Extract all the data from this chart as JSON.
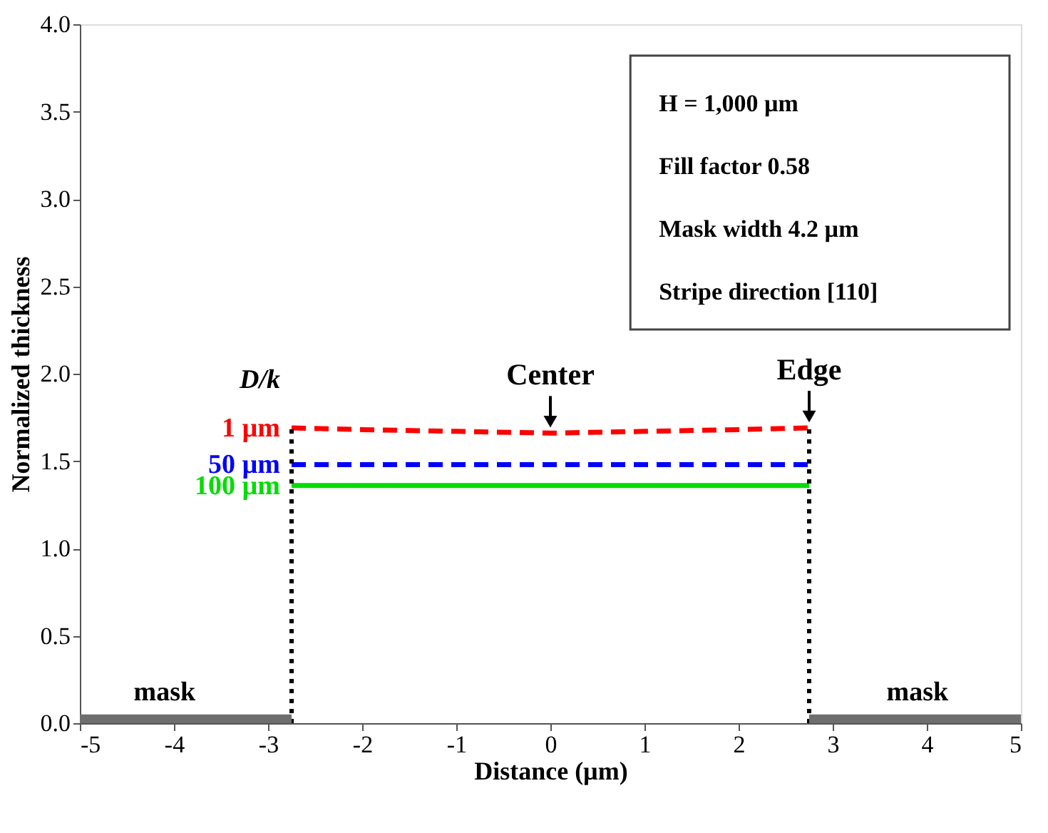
{
  "chart_data": {
    "type": "line",
    "xlabel": "Distance (µm)",
    "ylabel": "Normalized thickness",
    "legend_title": "D/k",
    "xlim": [
      -5,
      5
    ],
    "xticks": [
      -5,
      -4,
      -3,
      -2,
      -1,
      0,
      1,
      2,
      3,
      4,
      5
    ],
    "ylim": [
      0,
      4
    ],
    "yticks": [
      {
        "value": 0,
        "label": "0.0"
      },
      0.5,
      {
        "value": 1,
        "label": "1.0"
      },
      1.5,
      {
        "value": 2,
        "label": "2.0"
      },
      2.5,
      {
        "value": 3,
        "label": "3.0"
      },
      3.5,
      {
        "value": 4,
        "label": "4.0"
      }
    ],
    "series": [
      {
        "name": "1 µm",
        "color": "#ff0000",
        "line_style": "dashed",
        "x": [
          -2.75,
          -2,
          -1,
          0,
          1,
          2,
          2.75
        ],
        "values": [
          1.69,
          1.68,
          1.67,
          1.66,
          1.67,
          1.68,
          1.69
        ]
      },
      {
        "name": "50 µm",
        "color": "#0000ff",
        "line_style": "dashed",
        "x": [
          -2.75,
          2.75
        ],
        "values": [
          1.48,
          1.48
        ]
      },
      {
        "name": "100 µm",
        "color": "#00dd00",
        "line_style": "solid",
        "x": [
          -2.75,
          2.75
        ],
        "values": [
          1.36,
          1.36
        ]
      },
      {
        "color": "#000000",
        "line_style": "dotted",
        "x": [
          -2.75,
          -2.75
        ],
        "values": [
          0,
          1.69
        ]
      },
      {
        "color": "#000000",
        "line_style": "dotted",
        "x": [
          2.75,
          2.75
        ],
        "values": [
          0,
          1.69
        ]
      },
      {
        "type": "area",
        "color": "#6e6e6e",
        "x": [
          -5,
          -2.75
        ],
        "values": [
          0.05,
          0.05
        ]
      },
      {
        "type": "area",
        "color": "#6e6e6e",
        "x": [
          2.75,
          5
        ],
        "values": [
          0.05,
          0.05
        ]
      }
    ],
    "annotations": [
      {
        "text": "Center",
        "x": 0,
        "y": 1.66
      },
      {
        "text": "Edge",
        "x": 2.75,
        "y": 1.69
      },
      {
        "text": "mask",
        "x": -4.1,
        "y": 0.05
      },
      {
        "text": "mask",
        "x": 3.9,
        "y": 0.05
      },
      "H = 1,000 µm",
      "Fill factor 0.58",
      "Mask width 4.2 µm",
      "Stripe direction [110]"
    ]
  }
}
